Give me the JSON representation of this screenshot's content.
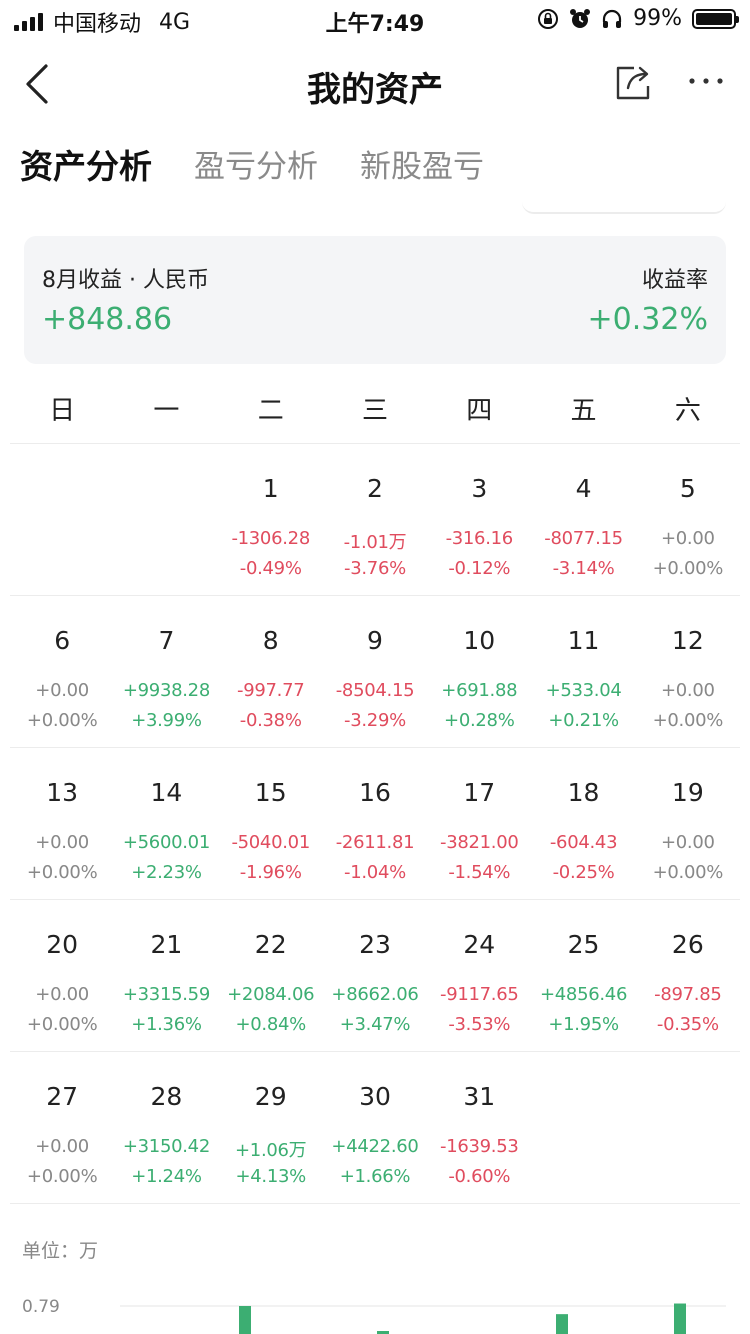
{
  "status_bar": {
    "carrier": "中国移动",
    "network": "4G",
    "time": "上午7:49",
    "battery_text": "99%",
    "battery_level": 0.99
  },
  "nav": {
    "title": "我的资产",
    "back_icon": "chevron-left-icon",
    "share_icon": "share-icon",
    "more_icon": "more-dots-icon"
  },
  "tabs": [
    {
      "label": "资产分析",
      "active": true
    },
    {
      "label": "盈亏分析",
      "active": false
    },
    {
      "label": "新股盈亏",
      "active": false
    }
  ],
  "summary": {
    "income_label": "8月收益 · 人民币",
    "income_value": "+848.86",
    "rate_label": "收益率",
    "rate_value": "+0.32%"
  },
  "colors": {
    "positive": "#3cae72",
    "negative": "#e04c5e",
    "neutral": "#888888",
    "tab_accent": "#e4803a"
  },
  "calendar": {
    "weekdays": [
      "日",
      "一",
      "二",
      "三",
      "四",
      "五",
      "六"
    ],
    "weeks": [
      [
        null,
        null,
        {
          "day": "1",
          "amount": "-1306.28",
          "pct": "-0.49%",
          "sign": "neg"
        },
        {
          "day": "2",
          "amount": "-1.01万",
          "pct": "-3.76%",
          "sign": "neg"
        },
        {
          "day": "3",
          "amount": "-316.16",
          "pct": "-0.12%",
          "sign": "neg"
        },
        {
          "day": "4",
          "amount": "-8077.15",
          "pct": "-3.14%",
          "sign": "neg"
        },
        {
          "day": "5",
          "amount": "+0.00",
          "pct": "+0.00%",
          "sign": "zero"
        }
      ],
      [
        {
          "day": "6",
          "amount": "+0.00",
          "pct": "+0.00%",
          "sign": "zero"
        },
        {
          "day": "7",
          "amount": "+9938.28",
          "pct": "+3.99%",
          "sign": "pos"
        },
        {
          "day": "8",
          "amount": "-997.77",
          "pct": "-0.38%",
          "sign": "neg"
        },
        {
          "day": "9",
          "amount": "-8504.15",
          "pct": "-3.29%",
          "sign": "neg"
        },
        {
          "day": "10",
          "amount": "+691.88",
          "pct": "+0.28%",
          "sign": "pos"
        },
        {
          "day": "11",
          "amount": "+533.04",
          "pct": "+0.21%",
          "sign": "pos"
        },
        {
          "day": "12",
          "amount": "+0.00",
          "pct": "+0.00%",
          "sign": "zero"
        }
      ],
      [
        {
          "day": "13",
          "amount": "+0.00",
          "pct": "+0.00%",
          "sign": "zero"
        },
        {
          "day": "14",
          "amount": "+5600.01",
          "pct": "+2.23%",
          "sign": "pos"
        },
        {
          "day": "15",
          "amount": "-5040.01",
          "pct": "-1.96%",
          "sign": "neg"
        },
        {
          "day": "16",
          "amount": "-2611.81",
          "pct": "-1.04%",
          "sign": "neg"
        },
        {
          "day": "17",
          "amount": "-3821.00",
          "pct": "-1.54%",
          "sign": "neg"
        },
        {
          "day": "18",
          "amount": "-604.43",
          "pct": "-0.25%",
          "sign": "neg"
        },
        {
          "day": "19",
          "amount": "+0.00",
          "pct": "+0.00%",
          "sign": "zero"
        }
      ],
      [
        {
          "day": "20",
          "amount": "+0.00",
          "pct": "+0.00%",
          "sign": "zero"
        },
        {
          "day": "21",
          "amount": "+3315.59",
          "pct": "+1.36%",
          "sign": "pos"
        },
        {
          "day": "22",
          "amount": "+2084.06",
          "pct": "+0.84%",
          "sign": "pos"
        },
        {
          "day": "23",
          "amount": "+8662.06",
          "pct": "+3.47%",
          "sign": "pos"
        },
        {
          "day": "24",
          "amount": "-9117.65",
          "pct": "-3.53%",
          "sign": "neg"
        },
        {
          "day": "25",
          "amount": "+4856.46",
          "pct": "+1.95%",
          "sign": "pos"
        },
        {
          "day": "26",
          "amount": "-897.85",
          "pct": "-0.35%",
          "sign": "neg"
        }
      ],
      [
        {
          "day": "27",
          "amount": "+0.00",
          "pct": "+0.00%",
          "sign": "zero"
        },
        {
          "day": "28",
          "amount": "+3150.42",
          "pct": "+1.24%",
          "sign": "pos"
        },
        {
          "day": "29",
          "amount": "+1.06万",
          "pct": "+4.13%",
          "sign": "pos"
        },
        {
          "day": "30",
          "amount": "+4422.60",
          "pct": "+1.66%",
          "sign": "pos"
        },
        {
          "day": "31",
          "amount": "-1639.53",
          "pct": "-0.60%",
          "sign": "neg"
        },
        null,
        null
      ]
    ]
  },
  "chart": {
    "unit_label": "单位：万",
    "y_tick_label": "0.79"
  },
  "chart_data": {
    "type": "bar",
    "ylabel": "单位：万",
    "y_ticks": [
      0.79
    ],
    "visible_bars": [
      {
        "value": 0.79,
        "color": "#3cae72"
      },
      {
        "value": 0.06,
        "color": "#3cae72"
      },
      {
        "value": 0.56,
        "color": "#3cae72"
      },
      {
        "value": 0.86,
        "color": "#3cae72"
      }
    ]
  }
}
